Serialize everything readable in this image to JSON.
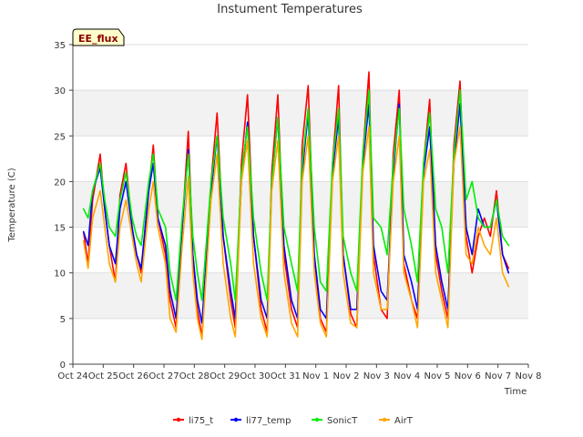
{
  "chart_data": {
    "type": "line",
    "title": "Instument Temperatures",
    "xlabel": "Time",
    "ylabel": "Temperature (C)",
    "badge": "EE_flux",
    "ylim": [
      0,
      35
    ],
    "yticks": [
      0,
      5,
      10,
      15,
      20,
      25,
      30,
      35
    ],
    "xlim": [
      0,
      15
    ],
    "xtick_labels": [
      "Oct 24",
      "Oct 25",
      "Oct 26",
      "Oct 27",
      "Oct 28",
      "Oct 29",
      "Oct 30",
      "Oct 31",
      "Nov 1",
      "Nov 2",
      "Nov 3",
      "Nov 4",
      "Nov 5",
      "Nov 6",
      "Nov 7",
      "Nov 8"
    ],
    "grid": "horizontal bands",
    "legend_position": "bottom",
    "x_unit": "days since Oct 24",
    "series": [
      {
        "name": "li75_t",
        "color": "#ff0000",
        "x": [
          0.35,
          0.5,
          0.65,
          0.9,
          1.05,
          1.2,
          1.4,
          1.55,
          1.75,
          1.95,
          2.1,
          2.25,
          2.5,
          2.65,
          2.8,
          3.05,
          3.2,
          3.4,
          3.6,
          3.8,
          3.95,
          4.1,
          4.25,
          4.55,
          4.75,
          4.95,
          5.2,
          5.35,
          5.55,
          5.75,
          5.95,
          6.2,
          6.4,
          6.55,
          6.75,
          6.95,
          7.2,
          7.4,
          7.55,
          7.75,
          7.95,
          8.15,
          8.35,
          8.55,
          8.75,
          8.9,
          9.15,
          9.35,
          9.55,
          9.75,
          9.9,
          10.15,
          10.35,
          10.55,
          10.75,
          10.9,
          11.15,
          11.35,
          11.55,
          11.75,
          11.95,
          12.15,
          12.35,
          12.55,
          12.75,
          12.95,
          13.15,
          13.35,
          13.55,
          13.75,
          13.95,
          14.15,
          14.35
        ],
        "values": [
          14.5,
          11,
          18,
          23,
          17,
          13,
          9,
          18.5,
          22,
          15,
          12,
          10,
          19,
          24,
          16,
          12,
          7,
          4,
          15,
          25.5,
          12,
          6,
          3,
          20,
          27.5,
          14,
          7,
          4,
          22,
          29.5,
          14,
          6,
          3.5,
          21,
          29.5,
          12,
          6,
          4,
          24,
          30.5,
          12,
          5,
          3.5,
          22,
          30.5,
          12,
          5.5,
          4,
          23,
          32,
          12,
          6,
          5,
          23,
          30,
          11,
          7,
          5,
          22,
          29,
          12,
          8,
          5,
          24,
          31,
          14,
          10,
          14,
          16,
          14,
          19,
          12,
          10.5
        ]
      },
      {
        "name": "li77_temp",
        "color": "#0000ff",
        "x": [
          0.35,
          0.5,
          0.65,
          0.9,
          1.05,
          1.2,
          1.4,
          1.55,
          1.75,
          1.95,
          2.1,
          2.25,
          2.5,
          2.65,
          2.8,
          3.05,
          3.2,
          3.4,
          3.6,
          3.8,
          3.95,
          4.1,
          4.25,
          4.55,
          4.75,
          4.95,
          5.2,
          5.35,
          5.55,
          5.75,
          5.95,
          6.2,
          6.4,
          6.55,
          6.75,
          6.95,
          7.2,
          7.4,
          7.55,
          7.75,
          7.95,
          8.15,
          8.35,
          8.55,
          8.75,
          8.9,
          9.15,
          9.35,
          9.55,
          9.75,
          9.9,
          10.15,
          10.35,
          10.55,
          10.75,
          10.9,
          11.15,
          11.35,
          11.55,
          11.75,
          11.95,
          12.15,
          12.35,
          12.55,
          12.75,
          12.95,
          13.15,
          13.35,
          13.55,
          13.75,
          13.95,
          14.15,
          14.35
        ],
        "values": [
          14.5,
          13,
          19,
          21.5,
          17,
          13,
          11,
          17,
          20,
          15,
          12,
          10.5,
          19,
          22,
          16,
          13,
          8,
          5,
          15,
          23.5,
          12,
          7,
          4.5,
          19,
          25,
          14,
          8,
          5,
          20,
          26.5,
          14,
          7,
          5,
          20,
          27,
          13,
          7,
          5,
          21,
          27.5,
          12,
          6,
          5,
          21,
          27,
          12,
          6,
          6,
          22,
          28.5,
          13,
          8,
          7,
          21,
          28.5,
          12,
          9,
          6,
          21,
          26,
          13,
          9,
          6,
          22,
          28.5,
          15,
          12,
          17,
          15,
          15,
          18,
          12,
          10
        ]
      },
      {
        "name": "SonicT",
        "color": "#00ee00",
        "x": [
          0.35,
          0.5,
          0.65,
          0.9,
          1.05,
          1.2,
          1.4,
          1.55,
          1.75,
          1.95,
          2.1,
          2.25,
          2.5,
          2.65,
          2.8,
          3.05,
          3.2,
          3.4,
          3.6,
          3.8,
          3.95,
          4.1,
          4.25,
          4.55,
          4.75,
          4.95,
          5.2,
          5.35,
          5.55,
          5.75,
          5.95,
          6.2,
          6.4,
          6.55,
          6.75,
          6.95,
          7.2,
          7.4,
          7.55,
          7.75,
          7.95,
          8.15,
          8.35,
          8.55,
          8.75,
          8.9,
          9.15,
          9.35,
          9.55,
          9.75,
          9.9,
          10.15,
          10.35,
          10.55,
          10.75,
          10.9,
          11.15,
          11.35,
          11.55,
          11.75,
          11.95,
          12.15,
          12.35,
          12.55,
          12.75,
          12.95,
          13.15,
          13.35,
          13.55,
          13.75,
          13.95,
          14.15,
          14.35
        ],
        "values": [
          17,
          16,
          19,
          22,
          18,
          15,
          14,
          18,
          21,
          16,
          14,
          13,
          20,
          23,
          17,
          15,
          10,
          7,
          16,
          23,
          14,
          10,
          7,
          20,
          25,
          16,
          11,
          7,
          21,
          26,
          16,
          10,
          7,
          20,
          27,
          15,
          11,
          8,
          22,
          28,
          15,
          9,
          8,
          22,
          28,
          14,
          10,
          8,
          23,
          30,
          16,
          15,
          12,
          22,
          28,
          17,
          13,
          9,
          22,
          27.5,
          17,
          15,
          10,
          23,
          30,
          18,
          20,
          16,
          15,
          15,
          18,
          14,
          13
        ]
      },
      {
        "name": "AirT",
        "color": "#ffa500",
        "x": [
          0.35,
          0.5,
          0.65,
          0.9,
          1.05,
          1.2,
          1.4,
          1.55,
          1.75,
          1.95,
          2.1,
          2.25,
          2.5,
          2.65,
          2.8,
          3.05,
          3.2,
          3.4,
          3.6,
          3.8,
          3.95,
          4.1,
          4.25,
          4.55,
          4.75,
          4.95,
          5.2,
          5.35,
          5.55,
          5.75,
          5.95,
          6.2,
          6.4,
          6.55,
          6.75,
          6.95,
          7.2,
          7.4,
          7.55,
          7.75,
          7.95,
          8.15,
          8.35,
          8.55,
          8.75,
          8.9,
          9.15,
          9.35,
          9.55,
          9.75,
          9.9,
          10.15,
          10.35,
          10.55,
          10.75,
          10.9,
          11.15,
          11.35,
          11.55,
          11.75,
          11.95,
          12.15,
          12.35,
          12.55,
          12.75,
          12.95,
          13.15,
          13.35,
          13.55,
          13.75,
          13.95,
          14.15,
          14.35
        ],
        "values": [
          13.5,
          10.5,
          16,
          19,
          15,
          11,
          9,
          15,
          18,
          14,
          11,
          9,
          17,
          20,
          15,
          11,
          5,
          3.5,
          13,
          20.5,
          10,
          5,
          2.7,
          18,
          23,
          11,
          5,
          3,
          20,
          24.5,
          11,
          5,
          3,
          19,
          24.5,
          10,
          4.5,
          3,
          20,
          25,
          10,
          4.5,
          3,
          20,
          25,
          10,
          4.5,
          4,
          21,
          26,
          10,
          6,
          6,
          20,
          25,
          10,
          7,
          4,
          20,
          23.5,
          10,
          7,
          4,
          22,
          26,
          12,
          11,
          15,
          13,
          12,
          16,
          10,
          8.5
        ]
      }
    ]
  }
}
